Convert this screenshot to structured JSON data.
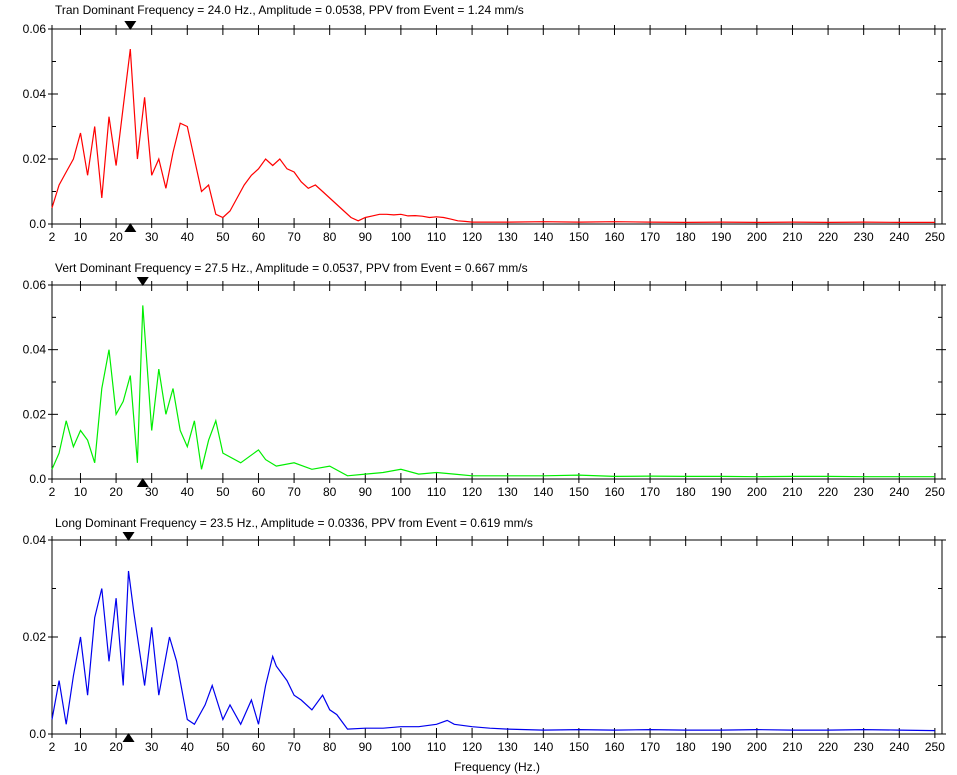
{
  "chart_data": [
    {
      "type": "line",
      "title": "Tran Dominant Frequency = 24.0 Hz., Amplitude = 0.0538,  PPV from Event = 1.24 mm/s",
      "xlabel": "",
      "ylabel": "",
      "xlim": [
        2,
        252
      ],
      "ylim": [
        0,
        0.06
      ],
      "yticks": [
        0.0,
        0.02,
        0.04,
        0.06
      ],
      "ytick_labels": [
        "0.0",
        "0.02",
        "0.04",
        "0.06"
      ],
      "color": "#ff0000",
      "dominant_frequency": 24.0,
      "x": [
        2,
        4,
        6,
        8,
        10,
        12,
        14,
        16,
        18,
        20,
        22,
        24,
        26,
        28,
        30,
        32,
        34,
        36,
        38,
        40,
        42,
        44,
        46,
        48,
        50,
        52,
        54,
        56,
        58,
        60,
        62,
        64,
        66,
        68,
        70,
        72,
        74,
        76,
        78,
        80,
        82,
        84,
        86,
        88,
        90,
        92,
        94,
        96,
        98,
        100,
        102,
        104,
        106,
        108,
        110,
        112,
        114,
        116,
        118,
        120,
        130,
        140,
        150,
        160,
        170,
        180,
        190,
        200,
        210,
        220,
        230,
        240,
        250
      ],
      "y": [
        0.005,
        0.012,
        0.016,
        0.02,
        0.028,
        0.015,
        0.03,
        0.008,
        0.033,
        0.018,
        0.036,
        0.0538,
        0.02,
        0.039,
        0.015,
        0.02,
        0.011,
        0.022,
        0.031,
        0.03,
        0.02,
        0.01,
        0.012,
        0.003,
        0.002,
        0.004,
        0.008,
        0.012,
        0.015,
        0.017,
        0.02,
        0.018,
        0.02,
        0.017,
        0.016,
        0.013,
        0.011,
        0.012,
        0.01,
        0.008,
        0.006,
        0.004,
        0.002,
        0.001,
        0.002,
        0.0025,
        0.003,
        0.003,
        0.0028,
        0.003,
        0.0025,
        0.0026,
        0.0024,
        0.002,
        0.0022,
        0.002,
        0.0015,
        0.001,
        0.0008,
        0.0006,
        0.0006,
        0.0007,
        0.0006,
        0.0007,
        0.0006,
        0.0005,
        0.0006,
        0.0005,
        0.0006,
        0.0005,
        0.0006,
        0.0005,
        0.0005
      ]
    },
    {
      "type": "line",
      "title": "Vert Dominant Frequency = 27.5 Hz., Amplitude = 0.0537,  PPV from Event = 0.667 mm/s",
      "xlabel": "",
      "ylabel": "",
      "xlim": [
        2,
        252
      ],
      "ylim": [
        0,
        0.06
      ],
      "yticks": [
        0.0,
        0.02,
        0.04,
        0.06
      ],
      "ytick_labels": [
        "0.0",
        "0.02",
        "0.04",
        "0.06"
      ],
      "color": "#00ee00",
      "dominant_frequency": 27.5,
      "x": [
        2,
        4,
        6,
        8,
        10,
        12,
        14,
        16,
        18,
        20,
        22,
        24,
        26,
        27.5,
        30,
        32,
        34,
        36,
        38,
        40,
        42,
        44,
        46,
        48,
        50,
        55,
        60,
        62,
        65,
        70,
        75,
        80,
        85,
        90,
        95,
        100,
        105,
        110,
        115,
        120,
        130,
        140,
        150,
        160,
        170,
        180,
        190,
        200,
        210,
        220,
        230,
        240,
        250
      ],
      "y": [
        0.003,
        0.008,
        0.018,
        0.01,
        0.015,
        0.012,
        0.005,
        0.028,
        0.04,
        0.02,
        0.024,
        0.032,
        0.005,
        0.0537,
        0.015,
        0.034,
        0.02,
        0.028,
        0.015,
        0.01,
        0.018,
        0.003,
        0.012,
        0.018,
        0.008,
        0.005,
        0.009,
        0.006,
        0.004,
        0.005,
        0.003,
        0.004,
        0.001,
        0.0015,
        0.002,
        0.003,
        0.0015,
        0.002,
        0.0015,
        0.001,
        0.001,
        0.001,
        0.0012,
        0.0008,
        0.0009,
        0.0008,
        0.0008,
        0.0007,
        0.0008,
        0.0008,
        0.0007,
        0.0007,
        0.0007
      ]
    },
    {
      "type": "line",
      "title": "Long Dominant Frequency = 23.5 Hz., Amplitude = 0.0336,  PPV from Event = 0.619 mm/s",
      "xlabel": "Frequency (Hz.)",
      "ylabel": "",
      "xlim": [
        2,
        252
      ],
      "ylim": [
        0,
        0.04
      ],
      "yticks": [
        0.0,
        0.02,
        0.04
      ],
      "ytick_labels": [
        "0.0",
        "0.02",
        "0.04"
      ],
      "color": "#0000ee",
      "dominant_frequency": 23.5,
      "x": [
        2,
        4,
        6,
        8,
        10,
        12,
        14,
        16,
        18,
        20,
        22,
        23.5,
        25,
        28,
        30,
        32,
        35,
        37,
        40,
        42,
        45,
        47,
        50,
        52,
        55,
        58,
        60,
        62,
        64,
        65,
        68,
        70,
        72,
        75,
        78,
        80,
        82,
        85,
        90,
        95,
        100,
        105,
        110,
        113,
        115,
        120,
        125,
        130,
        140,
        150,
        160,
        170,
        180,
        190,
        200,
        210,
        220,
        230,
        240,
        250
      ],
      "y": [
        0.003,
        0.011,
        0.002,
        0.012,
        0.02,
        0.008,
        0.024,
        0.03,
        0.015,
        0.028,
        0.01,
        0.0336,
        0.025,
        0.01,
        0.022,
        0.008,
        0.02,
        0.015,
        0.003,
        0.002,
        0.006,
        0.01,
        0.003,
        0.006,
        0.002,
        0.007,
        0.002,
        0.01,
        0.016,
        0.014,
        0.011,
        0.008,
        0.007,
        0.005,
        0.008,
        0.005,
        0.004,
        0.001,
        0.0012,
        0.0012,
        0.0015,
        0.0015,
        0.002,
        0.0028,
        0.002,
        0.0015,
        0.0012,
        0.001,
        0.0008,
        0.0009,
        0.0008,
        0.0009,
        0.0008,
        0.0008,
        0.0009,
        0.0008,
        0.0008,
        0.0009,
        0.0008,
        0.0007
      ]
    }
  ],
  "x_tick_labels": [
    "2",
    "10",
    "20",
    "30",
    "40",
    "50",
    "60",
    "70",
    "80",
    "90",
    "100",
    "110",
    "120",
    "130",
    "140",
    "150",
    "160",
    "170",
    "180",
    "190",
    "200",
    "210",
    "220",
    "230",
    "240",
    "250"
  ],
  "x_tick_values": [
    2,
    10,
    20,
    30,
    40,
    50,
    60,
    70,
    80,
    90,
    100,
    110,
    120,
    130,
    140,
    150,
    160,
    170,
    180,
    190,
    200,
    210,
    220,
    230,
    240,
    250
  ]
}
